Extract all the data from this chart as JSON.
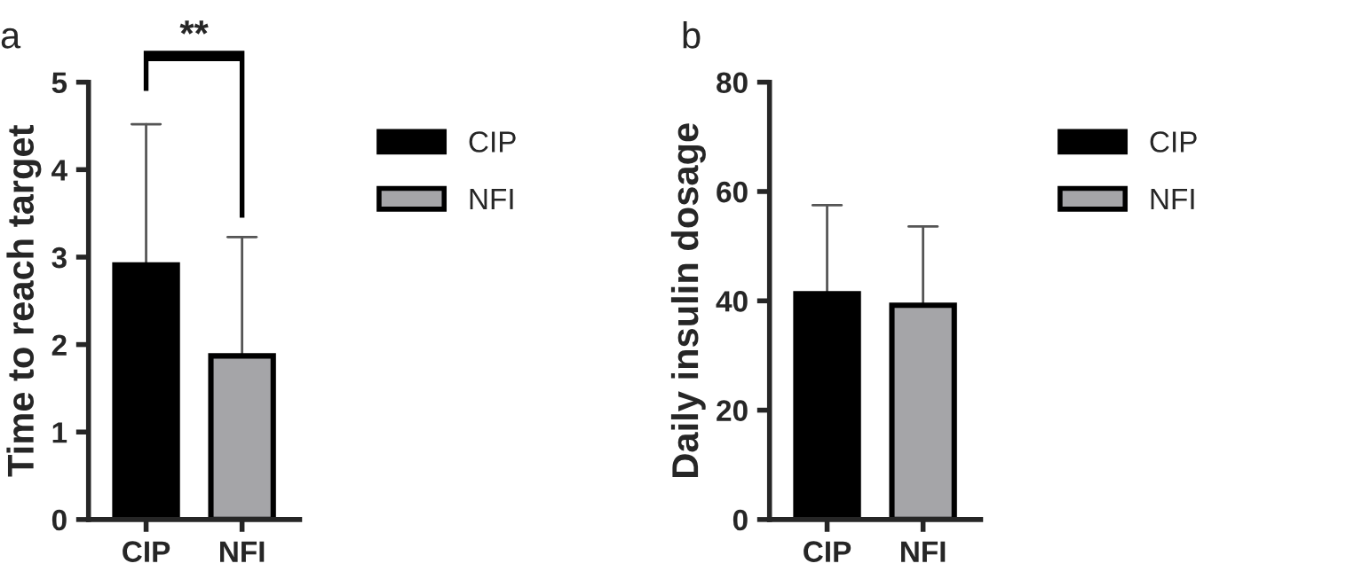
{
  "chart_data": [
    {
      "type": "bar",
      "title": "a",
      "ylabel": "Time to reach target",
      "categories": [
        "CIP",
        "NFI"
      ],
      "series": [
        {
          "name": "CIP",
          "color": "#000000",
          "values": [
            2.91,
            null
          ],
          "errors": [
            [
              2.91,
              4.52
            ],
            null
          ]
        },
        {
          "name": "NFI",
          "color": "#a5a5a8",
          "values": [
            null,
            1.87
          ],
          "errors": [
            null,
            [
              1.87,
              3.23
            ]
          ]
        }
      ],
      "ylim": [
        0,
        5
      ],
      "yticks": [
        0,
        1,
        2,
        3,
        4,
        5
      ],
      "annotations": [
        "**"
      ],
      "legend": "right",
      "grid": false
    },
    {
      "type": "bar",
      "title": "b",
      "ylabel": "Daily insulin dosage",
      "categories": [
        "CIP",
        "NFI"
      ],
      "series": [
        {
          "name": "CIP",
          "color": "#000000",
          "values": [
            41.3,
            null
          ],
          "errors": [
            [
              41.3,
              57.5
            ],
            null
          ]
        },
        {
          "name": "NFI",
          "color": "#a5a5a8",
          "values": [
            null,
            39.2
          ],
          "errors": [
            null,
            [
              39.2,
              53.6
            ]
          ]
        }
      ],
      "ylim": [
        0,
        80
      ],
      "yticks": [
        0,
        20,
        40,
        60,
        80
      ],
      "legend": "right",
      "grid": false
    }
  ]
}
